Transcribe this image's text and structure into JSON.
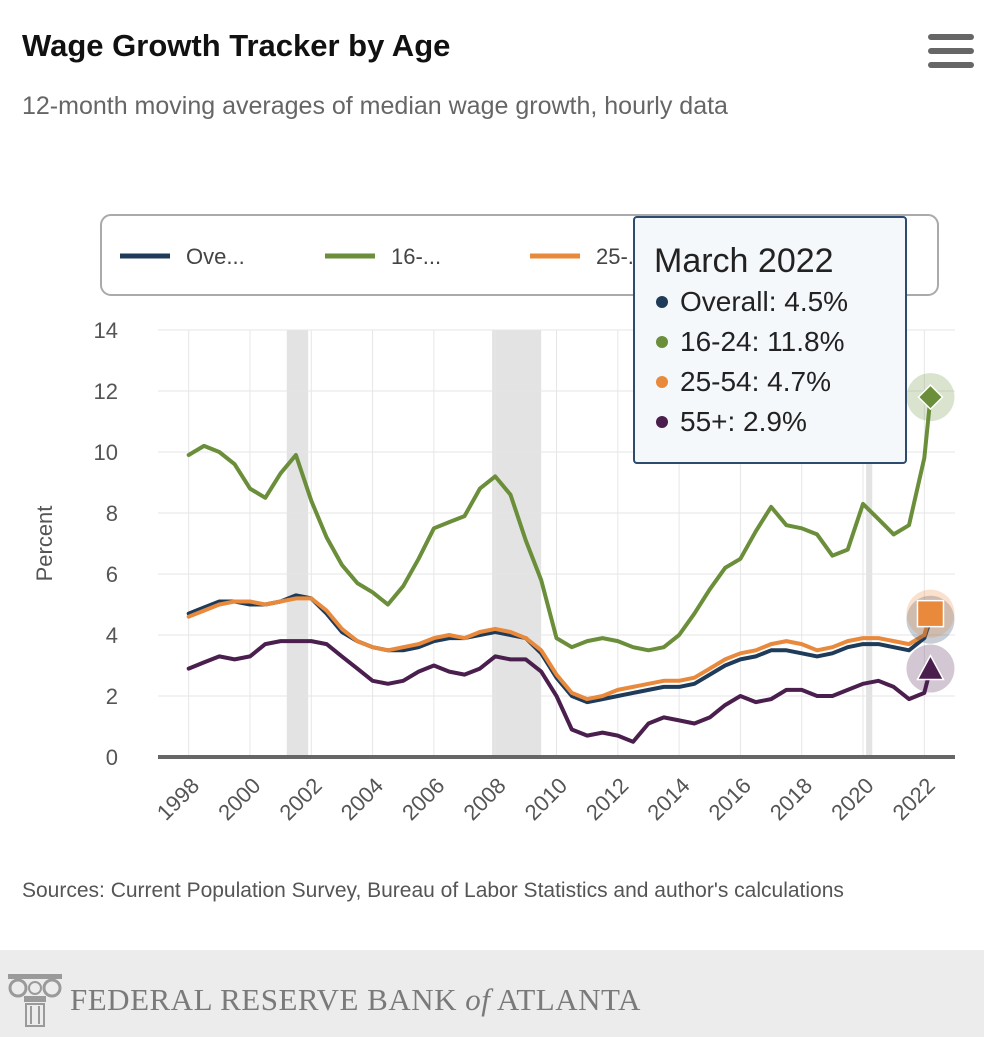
{
  "header": {
    "title": "Wage Growth Tracker by Age",
    "subtitle": "12-month moving averages of median wage growth, hourly data",
    "menu_icon": "hamburger-menu-icon"
  },
  "footer": {
    "sources": "Sources: Current Population Survey, Bureau of Labor Statistics and author's calculations",
    "bank_pre": "FEDERAL RESERVE BANK ",
    "bank_of": "of",
    "bank_post": " ATLANTA",
    "logo_icon": "column-capital-logo-icon"
  },
  "tooltip": {
    "title": "March 2022",
    "rows": [
      {
        "label": "Overall: 4.5%",
        "color": "#1f3b5a"
      },
      {
        "label": "16-24: 11.8%",
        "color": "#6b8e3a"
      },
      {
        "label": "25-54: 4.7%",
        "color": "#e8893b"
      },
      {
        "label": "55+: 2.9%",
        "color": "#4a1f4e"
      }
    ]
  },
  "chart_data": {
    "type": "line",
    "title": "Wage Growth Tracker by Age",
    "subtitle": "12-month moving averages of median wage growth, hourly data",
    "ylabel": "Percent",
    "xlabel": "",
    "xlim": [
      1997,
      2023
    ],
    "ylim": [
      0,
      14
    ],
    "x_ticks": [
      "1998",
      "2000",
      "2002",
      "2004",
      "2006",
      "2008",
      "2010",
      "2012",
      "2014",
      "2016",
      "2018",
      "2020",
      "2022"
    ],
    "y_ticks": [
      0,
      2,
      4,
      6,
      8,
      10,
      12,
      14
    ],
    "legend_placement": "top",
    "legend_labels": [
      "Ove...",
      "16-...",
      "25-..."
    ],
    "recessions": [
      [
        2001.2,
        2001.9
      ],
      [
        2007.9,
        2009.5
      ],
      [
        2020.1,
        2020.3
      ]
    ],
    "x": [
      1998.0,
      1998.5,
      1999.0,
      1999.5,
      2000.0,
      2000.5,
      2001.0,
      2001.5,
      2002.0,
      2002.5,
      2003.0,
      2003.5,
      2004.0,
      2004.5,
      2005.0,
      2005.5,
      2006.0,
      2006.5,
      2007.0,
      2007.5,
      2008.0,
      2008.5,
      2009.0,
      2009.5,
      2010.0,
      2010.5,
      2011.0,
      2011.5,
      2012.0,
      2012.5,
      2013.0,
      2013.5,
      2014.0,
      2014.5,
      2015.0,
      2015.5,
      2016.0,
      2016.5,
      2017.0,
      2017.5,
      2018.0,
      2018.5,
      2019.0,
      2019.5,
      2020.0,
      2020.5,
      2021.0,
      2021.5,
      2022.0,
      2022.2
    ],
    "series": [
      {
        "name": "Overall",
        "color": "#1f3b5a",
        "marker": "circle",
        "values": [
          4.7,
          4.9,
          5.1,
          5.1,
          5.0,
          5.0,
          5.1,
          5.3,
          5.2,
          4.7,
          4.1,
          3.8,
          3.6,
          3.5,
          3.5,
          3.6,
          3.8,
          3.9,
          3.9,
          4.0,
          4.1,
          4.0,
          3.9,
          3.4,
          2.6,
          2.0,
          1.8,
          1.9,
          2.0,
          2.1,
          2.2,
          2.3,
          2.3,
          2.4,
          2.7,
          3.0,
          3.2,
          3.3,
          3.5,
          3.5,
          3.4,
          3.3,
          3.4,
          3.6,
          3.7,
          3.7,
          3.6,
          3.5,
          3.9,
          4.5
        ]
      },
      {
        "name": "16-24",
        "color": "#6b8e3a",
        "marker": "diamond",
        "values": [
          9.9,
          10.2,
          10.0,
          9.6,
          8.8,
          8.5,
          9.3,
          9.9,
          8.4,
          7.2,
          6.3,
          5.7,
          5.4,
          5.0,
          5.6,
          6.5,
          7.5,
          7.7,
          7.9,
          8.8,
          9.2,
          8.6,
          7.1,
          5.8,
          3.9,
          3.6,
          3.8,
          3.9,
          3.8,
          3.6,
          3.5,
          3.6,
          4.0,
          4.7,
          5.5,
          6.2,
          6.5,
          7.4,
          8.2,
          7.6,
          7.5,
          7.3,
          6.6,
          6.8,
          8.3,
          7.8,
          7.3,
          7.6,
          9.8,
          11.8
        ]
      },
      {
        "name": "25-54",
        "color": "#e8893b",
        "marker": "square",
        "values": [
          4.6,
          4.8,
          5.0,
          5.1,
          5.1,
          5.0,
          5.1,
          5.2,
          5.2,
          4.8,
          4.2,
          3.8,
          3.6,
          3.5,
          3.6,
          3.7,
          3.9,
          4.0,
          3.9,
          4.1,
          4.2,
          4.1,
          3.9,
          3.5,
          2.7,
          2.1,
          1.9,
          2.0,
          2.2,
          2.3,
          2.4,
          2.5,
          2.5,
          2.6,
          2.9,
          3.2,
          3.4,
          3.5,
          3.7,
          3.8,
          3.7,
          3.5,
          3.6,
          3.8,
          3.9,
          3.9,
          3.8,
          3.7,
          4.0,
          4.7
        ]
      },
      {
        "name": "55+",
        "color": "#4a1f4e",
        "marker": "triangle",
        "values": [
          2.9,
          3.1,
          3.3,
          3.2,
          3.3,
          3.7,
          3.8,
          3.8,
          3.8,
          3.7,
          3.3,
          2.9,
          2.5,
          2.4,
          2.5,
          2.8,
          3.0,
          2.8,
          2.7,
          2.9,
          3.3,
          3.2,
          3.2,
          2.8,
          2.0,
          0.9,
          0.7,
          0.8,
          0.7,
          0.5,
          1.1,
          1.3,
          1.2,
          1.1,
          1.3,
          1.7,
          2.0,
          1.8,
          1.9,
          2.2,
          2.2,
          2.0,
          2.0,
          2.2,
          2.4,
          2.5,
          2.3,
          1.9,
          2.1,
          2.9
        ]
      }
    ]
  }
}
